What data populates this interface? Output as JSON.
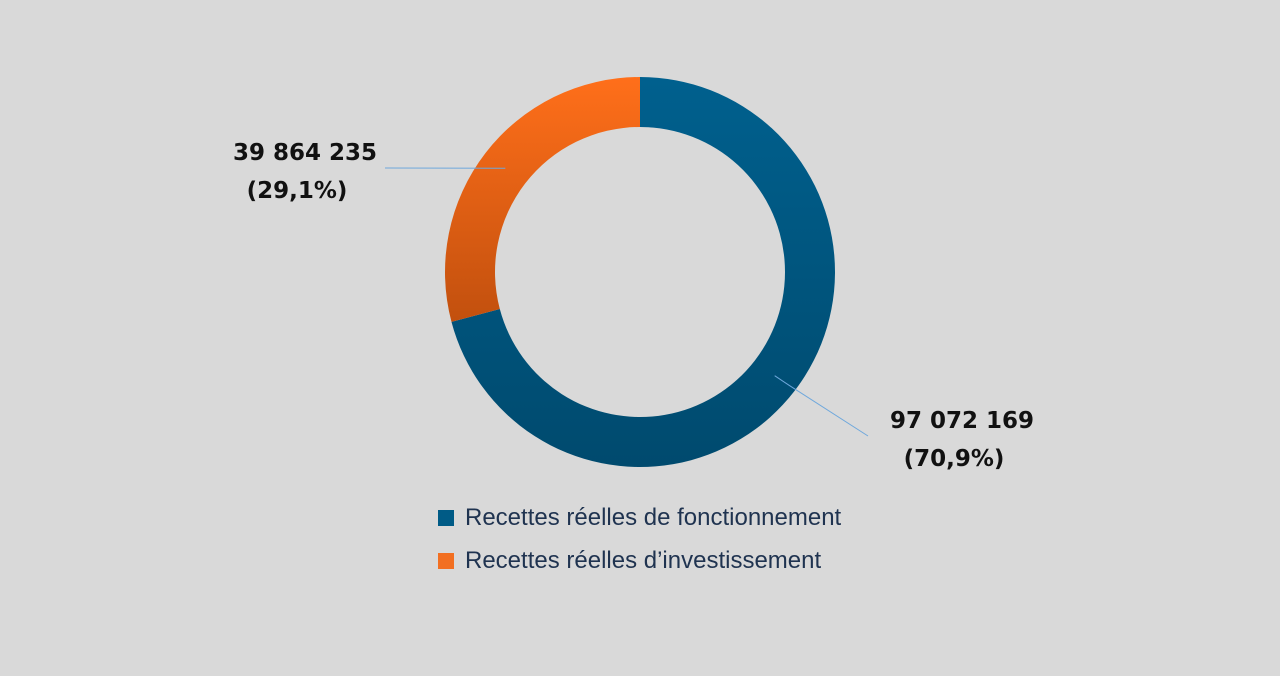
{
  "chart_data": {
    "type": "pie",
    "variant": "donut",
    "title": "",
    "series": [
      {
        "name": "Recettes réelles de fonctionnement",
        "value": 97072169,
        "value_label": "97 072 169",
        "percent_label": "(70,9%)",
        "color": "#005b86"
      },
      {
        "name": "Recettes réelles d’investissement",
        "value": 39864235,
        "value_label": "39 864 235",
        "percent_label": "(29,1%)",
        "color": "#f26f21"
      }
    ],
    "legend_position": "bottom"
  }
}
